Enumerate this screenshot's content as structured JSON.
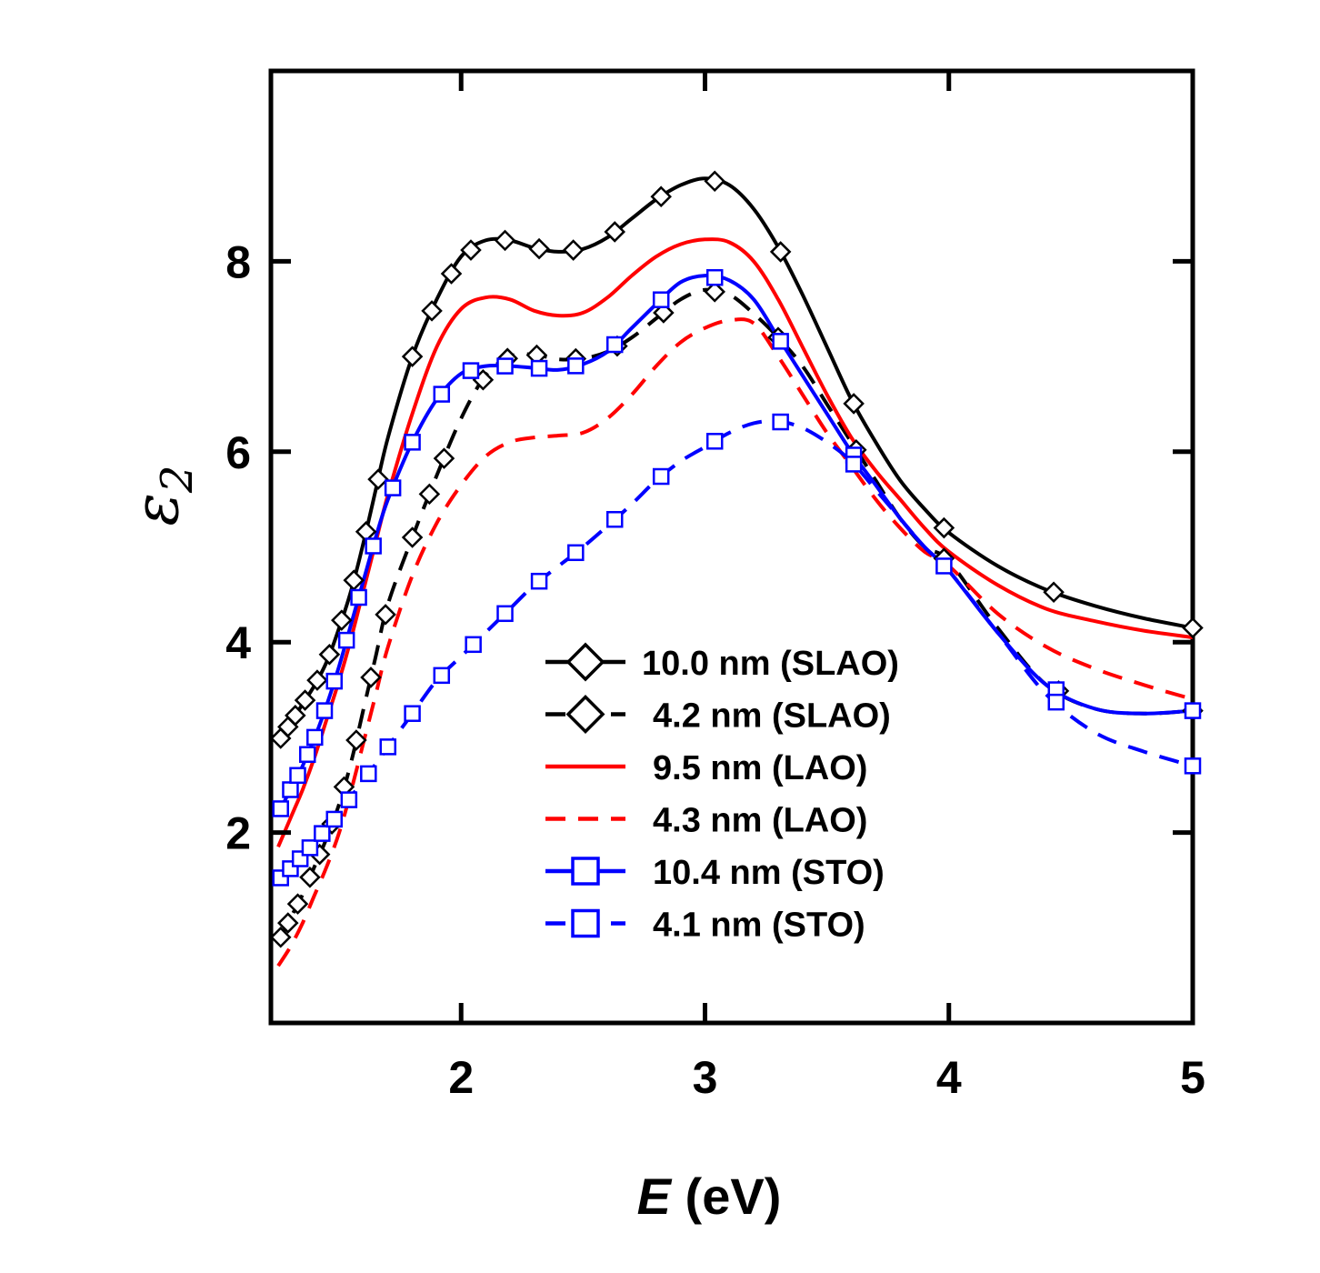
{
  "chart_data": {
    "type": "line",
    "xlabel_symbol": "E",
    "xlabel_unit": " (eV)",
    "ylabel_symbol": "ε",
    "ylabel_sub": "2",
    "xlim": [
      1.22,
      5.0
    ],
    "ylim": [
      0.0,
      10.0
    ],
    "xticks": [
      2,
      3,
      4,
      5
    ],
    "yticks": [
      2,
      4,
      6,
      8
    ],
    "legend_position": "lower-center",
    "series": [
      {
        "name": "10.0 nm (SLAO)",
        "color": "#000000",
        "dash": "solid",
        "marker": "diamond",
        "x": [
          1.25,
          1.3,
          1.35,
          1.4,
          1.45,
          1.5,
          1.55,
          1.6,
          1.65,
          1.7,
          1.8,
          1.9,
          2.0,
          2.1,
          2.2,
          2.3,
          2.4,
          2.5,
          2.6,
          2.7,
          2.8,
          2.9,
          3.0,
          3.1,
          3.2,
          3.3,
          3.4,
          3.5,
          3.6,
          3.7,
          3.8,
          3.9,
          4.0,
          4.2,
          4.4,
          4.6,
          4.8,
          5.0
        ],
        "y": [
          2.95,
          3.15,
          3.35,
          3.55,
          3.8,
          4.15,
          4.55,
          5.05,
          5.6,
          6.15,
          7.0,
          7.6,
          8.05,
          8.22,
          8.22,
          8.14,
          8.1,
          8.13,
          8.25,
          8.45,
          8.65,
          8.8,
          8.87,
          8.8,
          8.55,
          8.15,
          7.65,
          7.1,
          6.55,
          6.1,
          5.7,
          5.4,
          5.15,
          4.8,
          4.55,
          4.38,
          4.25,
          4.15
        ],
        "marker_x": [
          1.26,
          1.29,
          1.32,
          1.36,
          1.41,
          1.46,
          1.51,
          1.56,
          1.61,
          1.66,
          1.8,
          1.88,
          1.96,
          2.04,
          2.18,
          2.32,
          2.46,
          2.63,
          2.82,
          3.04,
          3.31,
          3.61,
          3.98,
          4.43,
          5.0
        ]
      },
      {
        "name": "4.2 nm (SLAO)",
        "color": "#000000",
        "dash": "dash",
        "marker": "diamond",
        "x": [
          1.25,
          1.3,
          1.35,
          1.4,
          1.45,
          1.5,
          1.55,
          1.6,
          1.65,
          1.7,
          1.8,
          1.9,
          2.0,
          2.1,
          2.2,
          2.3,
          2.4,
          2.5,
          2.6,
          2.7,
          2.8,
          2.9,
          3.0,
          3.1,
          3.2,
          3.3,
          3.4,
          3.5,
          3.6,
          3.7,
          3.8,
          3.9,
          4.0,
          4.2,
          4.4,
          4.6,
          4.8,
          5.0
        ],
        "y": [
          0.85,
          1.1,
          1.35,
          1.65,
          1.95,
          2.3,
          2.75,
          3.3,
          3.85,
          4.4,
          5.1,
          5.75,
          6.35,
          6.8,
          7.0,
          7.02,
          6.97,
          6.98,
          7.05,
          7.2,
          7.4,
          7.6,
          7.7,
          7.65,
          7.45,
          7.2,
          6.9,
          6.5,
          6.1,
          5.7,
          5.3,
          5.0,
          4.85,
          4.15,
          3.55,
          3.3,
          3.25,
          3.28
        ],
        "marker_x": [
          1.26,
          1.29,
          1.33,
          1.38,
          1.42,
          1.47,
          1.52,
          1.57,
          1.63,
          1.69,
          1.8,
          1.87,
          1.93,
          2.09,
          2.19,
          2.31,
          2.47,
          2.64,
          2.83,
          3.04,
          3.3,
          3.62,
          3.98,
          4.45,
          5.0
        ]
      },
      {
        "name": "9.5 nm (LAO)",
        "color": "#ff0000",
        "dash": "solid",
        "marker": "none",
        "x": [
          1.25,
          1.3,
          1.35,
          1.4,
          1.45,
          1.5,
          1.55,
          1.6,
          1.65,
          1.7,
          1.8,
          1.9,
          2.0,
          2.1,
          2.2,
          2.3,
          2.4,
          2.5,
          2.6,
          2.7,
          2.8,
          2.9,
          3.0,
          3.1,
          3.2,
          3.3,
          3.4,
          3.5,
          3.6,
          3.7,
          3.8,
          3.9,
          4.0,
          4.2,
          4.4,
          4.6,
          4.8,
          5.0
        ],
        "y": [
          1.85,
          2.15,
          2.45,
          2.8,
          3.2,
          3.6,
          4.05,
          4.55,
          5.05,
          5.55,
          6.4,
          7.1,
          7.5,
          7.62,
          7.6,
          7.48,
          7.43,
          7.46,
          7.62,
          7.85,
          8.05,
          8.18,
          8.23,
          8.2,
          8.0,
          7.6,
          7.1,
          6.6,
          6.15,
          5.8,
          5.5,
          5.2,
          4.95,
          4.6,
          4.35,
          4.22,
          4.12,
          4.05
        ]
      },
      {
        "name": "4.3 nm (LAO)",
        "color": "#ff0000",
        "dash": "dash",
        "marker": "none",
        "x": [
          1.25,
          1.3,
          1.35,
          1.4,
          1.45,
          1.5,
          1.55,
          1.6,
          1.65,
          1.7,
          1.8,
          1.9,
          2.0,
          2.1,
          2.2,
          2.3,
          2.4,
          2.5,
          2.6,
          2.7,
          2.8,
          2.9,
          3.0,
          3.1,
          3.2,
          3.3,
          3.4,
          3.5,
          3.6,
          3.7,
          3.8,
          3.9,
          4.0,
          4.2,
          4.4,
          4.6,
          4.8,
          5.0
        ],
        "y": [
          0.6,
          0.8,
          1.05,
          1.35,
          1.65,
          2.0,
          2.45,
          2.95,
          3.45,
          3.95,
          4.7,
          5.25,
          5.65,
          5.95,
          6.1,
          6.15,
          6.17,
          6.2,
          6.35,
          6.6,
          6.9,
          7.15,
          7.3,
          7.38,
          7.35,
          7.0,
          6.6,
          6.2,
          5.85,
          5.5,
          5.2,
          4.95,
          4.8,
          4.3,
          3.95,
          3.72,
          3.55,
          3.4
        ]
      },
      {
        "name": "10.4 nm (STO)",
        "color": "#0000ff",
        "dash": "solid",
        "marker": "square",
        "x": [
          1.25,
          1.3,
          1.35,
          1.4,
          1.45,
          1.5,
          1.55,
          1.6,
          1.65,
          1.7,
          1.8,
          1.9,
          2.0,
          2.1,
          2.2,
          2.3,
          2.4,
          2.5,
          2.6,
          2.7,
          2.8,
          2.9,
          3.0,
          3.1,
          3.2,
          3.3,
          3.4,
          3.5,
          3.6,
          3.7,
          3.8,
          3.9,
          4.0,
          4.2,
          4.4,
          4.6,
          4.8,
          5.0
        ],
        "y": [
          2.2,
          2.45,
          2.7,
          3.0,
          3.35,
          3.75,
          4.2,
          4.65,
          5.1,
          5.5,
          6.1,
          6.55,
          6.82,
          6.9,
          6.9,
          6.88,
          6.86,
          6.92,
          7.05,
          7.3,
          7.55,
          7.78,
          7.85,
          7.8,
          7.6,
          7.2,
          6.8,
          6.4,
          6.0,
          5.65,
          5.3,
          5.0,
          4.75,
          4.1,
          3.55,
          3.3,
          3.25,
          3.28
        ],
        "marker_x": [
          1.26,
          1.3,
          1.33,
          1.37,
          1.4,
          1.44,
          1.48,
          1.53,
          1.58,
          1.64,
          1.72,
          1.8,
          1.92,
          2.04,
          2.18,
          2.32,
          2.47,
          2.63,
          2.82,
          3.04,
          3.31,
          3.61,
          3.98,
          4.44,
          5.0
        ]
      },
      {
        "name": "4.1 nm (STO)",
        "color": "#0000ff",
        "dash": "dash",
        "marker": "square",
        "x": [
          1.25,
          1.3,
          1.35,
          1.4,
          1.45,
          1.5,
          1.55,
          1.6,
          1.65,
          1.7,
          1.8,
          1.9,
          2.0,
          2.1,
          2.2,
          2.3,
          2.4,
          2.5,
          2.6,
          2.7,
          2.8,
          2.9,
          3.0,
          3.1,
          3.2,
          3.3,
          3.4,
          3.5,
          3.6,
          3.7,
          3.8,
          3.9,
          4.0,
          4.2,
          4.4,
          4.6,
          4.8,
          5.0
        ],
        "y": [
          1.5,
          1.62,
          1.75,
          1.9,
          2.05,
          2.2,
          2.38,
          2.55,
          2.72,
          2.9,
          3.25,
          3.6,
          3.85,
          4.1,
          4.35,
          4.6,
          4.8,
          5.0,
          5.22,
          5.45,
          5.7,
          5.9,
          6.05,
          6.2,
          6.3,
          6.32,
          6.25,
          6.1,
          5.9,
          5.6,
          5.3,
          5.0,
          4.75,
          4.1,
          3.45,
          3.05,
          2.85,
          2.7
        ],
        "marker_x": [
          1.26,
          1.3,
          1.34,
          1.38,
          1.43,
          1.48,
          1.54,
          1.62,
          1.7,
          1.8,
          1.92,
          2.05,
          2.18,
          2.32,
          2.47,
          2.63,
          2.82,
          3.04,
          3.31,
          3.61,
          4.44,
          5.0
        ]
      }
    ]
  }
}
